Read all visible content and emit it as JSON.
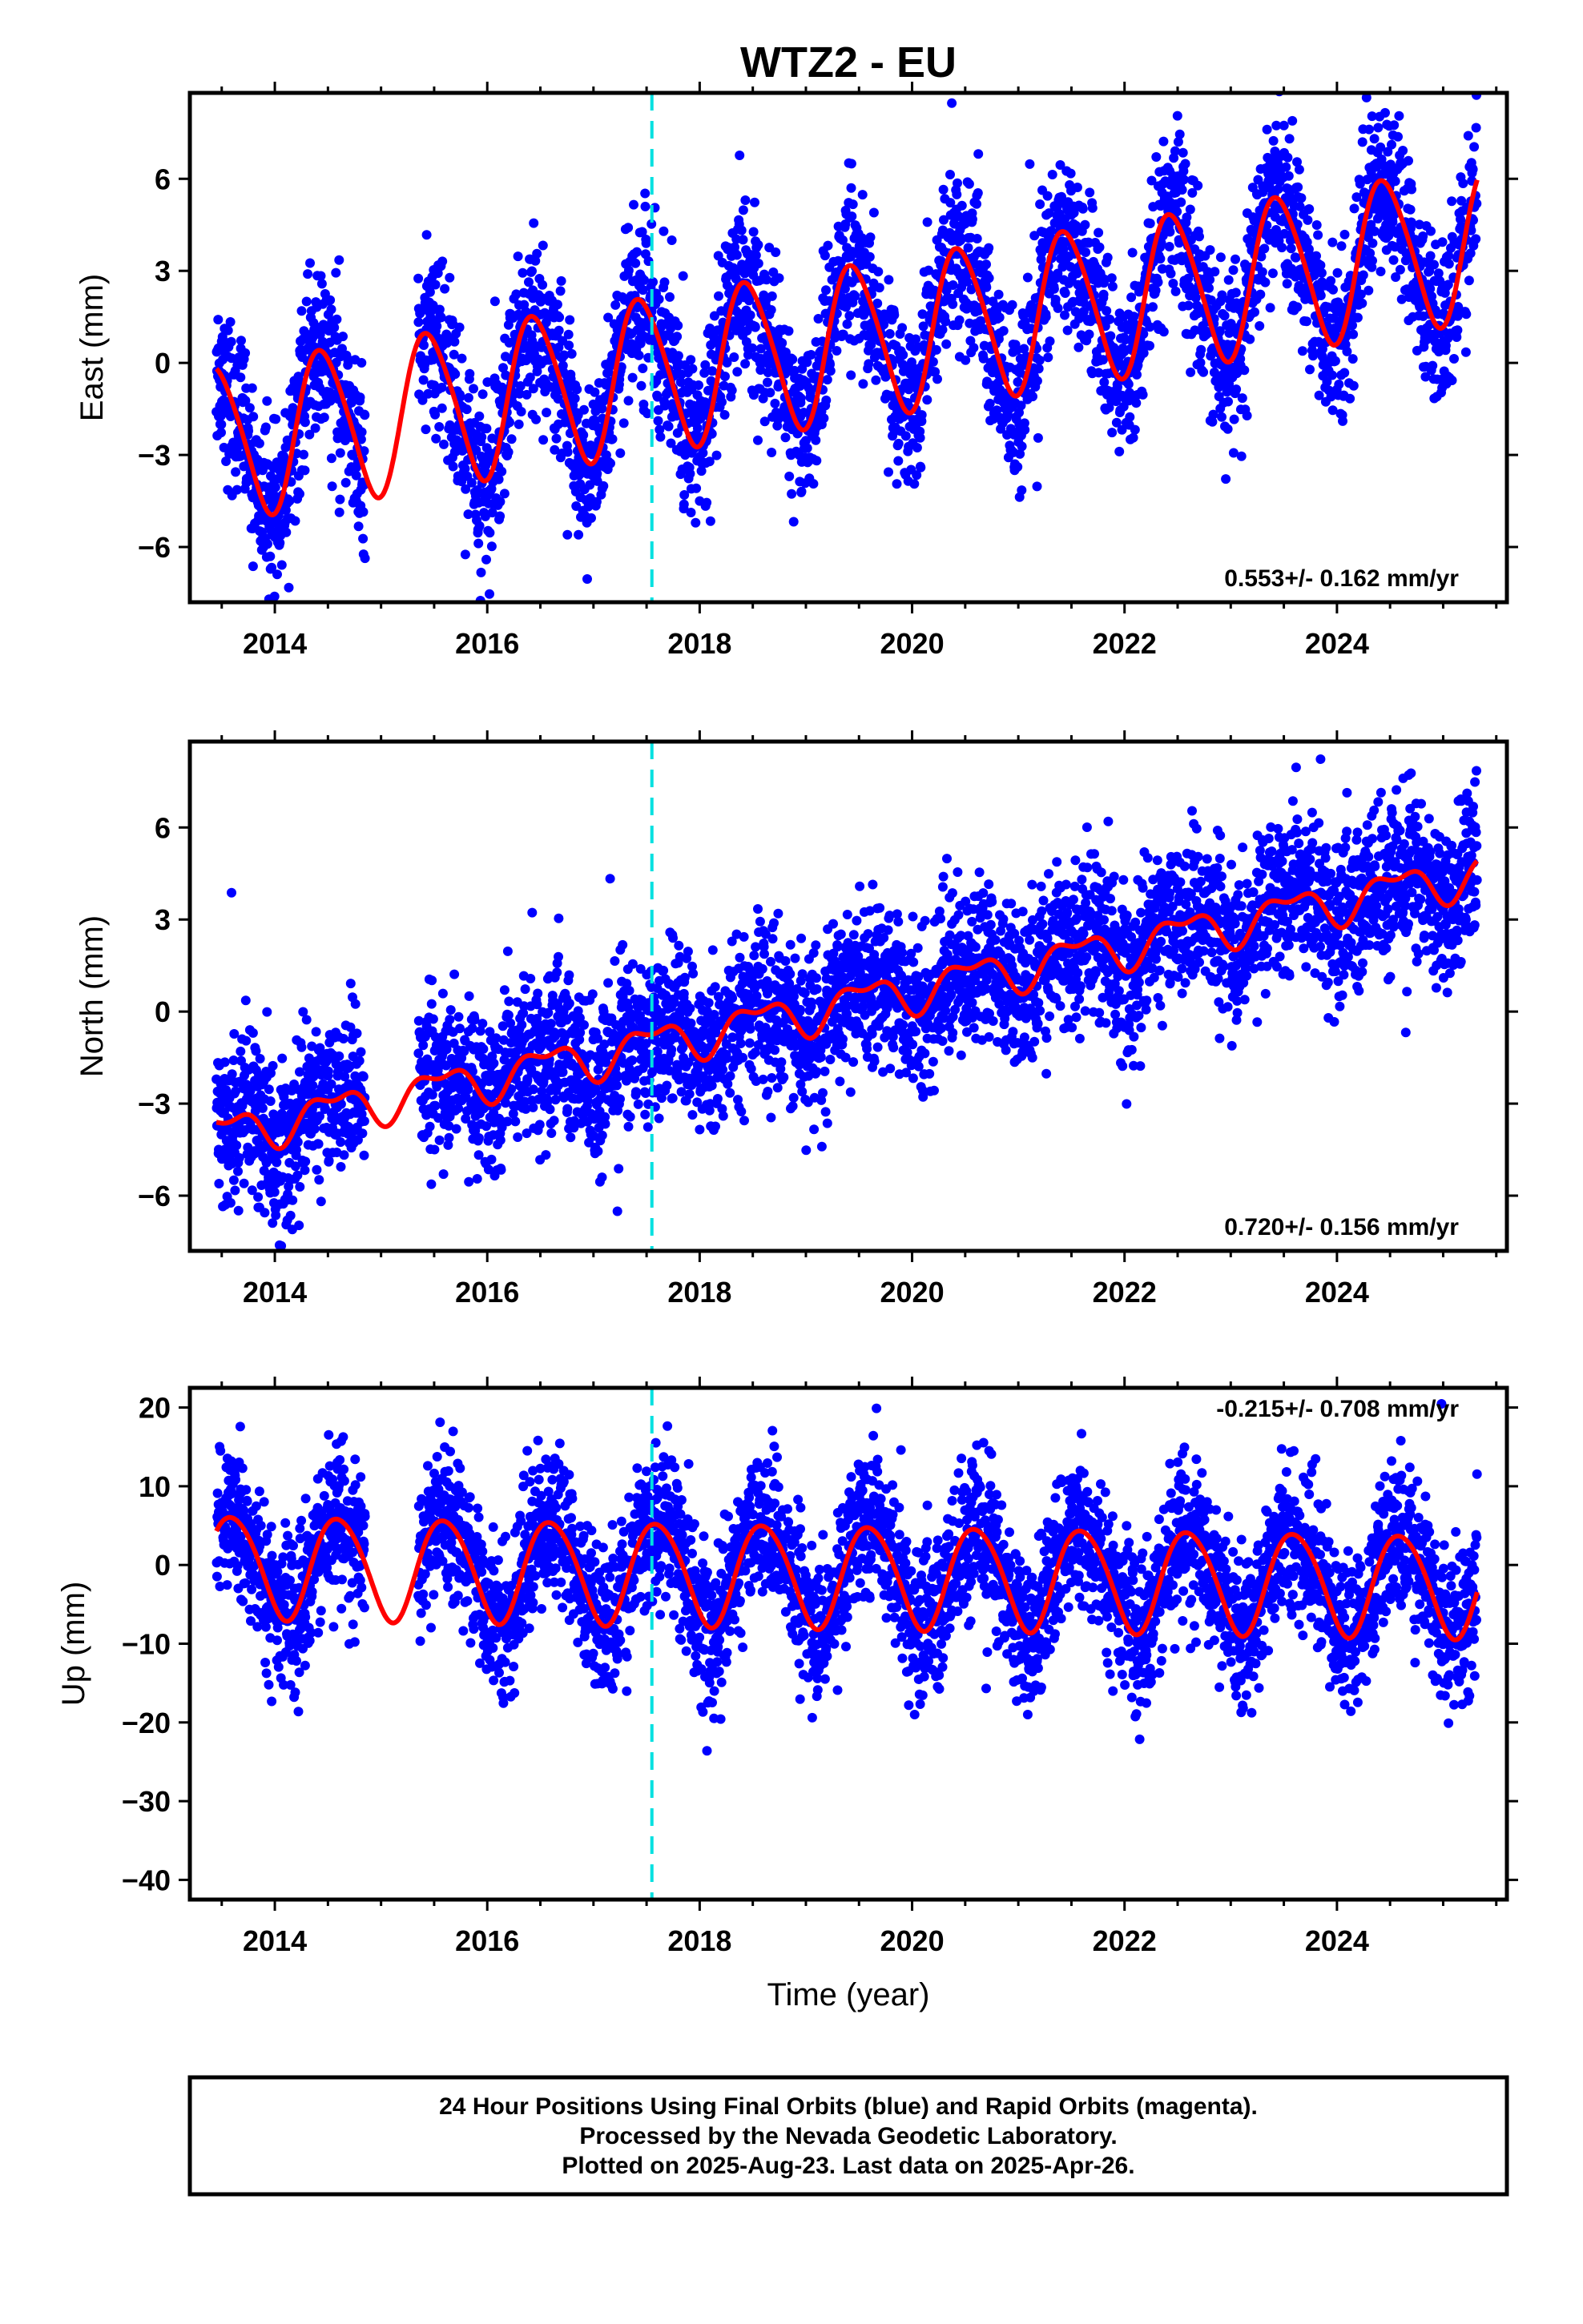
{
  "title": "WTZ2 - EU",
  "colors": {
    "points": "#0000ff",
    "model": "#ff0000",
    "event_line": "#00e0e0",
    "frame": "#000000"
  },
  "chart_data": [
    {
      "type": "scatter",
      "panel": "east",
      "ylabel": "East (mm)",
      "xlabel": "",
      "xlim": [
        2013.2,
        2025.6
      ],
      "ylim": [
        -7.8,
        8.8
      ],
      "xticks": [
        2014,
        2016,
        2018,
        2020,
        2022,
        2024
      ],
      "xticklabels": [
        "2014",
        "2016",
        "2018",
        "2020",
        "2022",
        "2024"
      ],
      "yticks": [
        6,
        3,
        0,
        -3,
        -6
      ],
      "yticklabels": [
        "6",
        "3",
        "0",
        "−3",
        "−6"
      ],
      "rate_text": "0.553+/- 0.162 mm/yr",
      "event_line_x": 2017.55,
      "data_start": 2013.45,
      "data_end": 2025.32,
      "gap": [
        2014.85,
        2015.35
      ],
      "model": {
        "offset": -2.6,
        "trend": 0.553,
        "annual_amp": 2.5,
        "annual_peak": 2013.45,
        "semi_amp": 0.3,
        "semi_peak": 2013.3
      },
      "scatter_sigma": 1.35,
      "series": [
        {
          "name": "Final Orbits (blue)",
          "kind": "points"
        },
        {
          "name": "model",
          "kind": "curve"
        }
      ]
    },
    {
      "type": "scatter",
      "panel": "north",
      "ylabel": "North (mm)",
      "xlabel": "",
      "xlim": [
        2013.2,
        2025.6
      ],
      "ylim": [
        -7.8,
        8.8
      ],
      "xticks": [
        2014,
        2016,
        2018,
        2020,
        2022,
        2024
      ],
      "xticklabels": [
        "2014",
        "2016",
        "2018",
        "2020",
        "2022",
        "2024"
      ],
      "yticks": [
        6,
        3,
        0,
        -3,
        -6
      ],
      "yticklabels": [
        "6",
        "3",
        "0",
        "−3",
        "−6"
      ],
      "rate_text": "0.720+/- 0.156 mm/yr",
      "event_line_x": 2017.55,
      "data_start": 2013.45,
      "data_end": 2025.32,
      "gap": [
        2014.85,
        2015.35
      ],
      "model": {
        "offset": -4.0,
        "trend": 0.72,
        "annual_amp": 0.6,
        "annual_peak": 2013.55,
        "semi_amp": 0.3,
        "semi_peak": 2013.3
      },
      "scatter_sigma": 1.3,
      "series": [
        {
          "name": "Final Orbits (blue)",
          "kind": "points"
        },
        {
          "name": "model",
          "kind": "curve"
        }
      ]
    },
    {
      "type": "scatter",
      "panel": "up",
      "ylabel": "Up (mm)",
      "xlabel": "Time (year)",
      "xlim": [
        2013.2,
        2025.6
      ],
      "ylim": [
        -42.5,
        22.5
      ],
      "xticks": [
        2014,
        2016,
        2018,
        2020,
        2022,
        2024
      ],
      "xticklabels": [
        "2014",
        "2016",
        "2018",
        "2020",
        "2022",
        "2024"
      ],
      "yticks": [
        20,
        10,
        0,
        -10,
        -20,
        -30,
        -40
      ],
      "yticklabels": [
        "20",
        "10",
        "0",
        "−10",
        "−20",
        "−30",
        "−40"
      ],
      "rate_text": "-0.215+/- 0.708 mm/yr",
      "event_line_x": 2017.55,
      "data_start": 2013.45,
      "data_end": 2025.32,
      "gap": [
        2014.85,
        2015.35
      ],
      "model": {
        "offset": 0.0,
        "trend": -0.215,
        "annual_amp": 6.5,
        "annual_peak": 2013.6,
        "semi_amp": 0.6,
        "semi_peak": 2013.4
      },
      "scatter_sigma": 4.8,
      "series": [
        {
          "name": "Final Orbits (blue)",
          "kind": "points"
        },
        {
          "name": "model",
          "kind": "curve"
        }
      ]
    }
  ],
  "caption": {
    "line1": "24 Hour Positions Using Final Orbits (blue) and Rapid Orbits (magenta).",
    "line2": "Processed by the Nevada Geodetic Laboratory.",
    "line3": "Plotted on 2025-Aug-23. Last data on 2025-Apr-26."
  }
}
